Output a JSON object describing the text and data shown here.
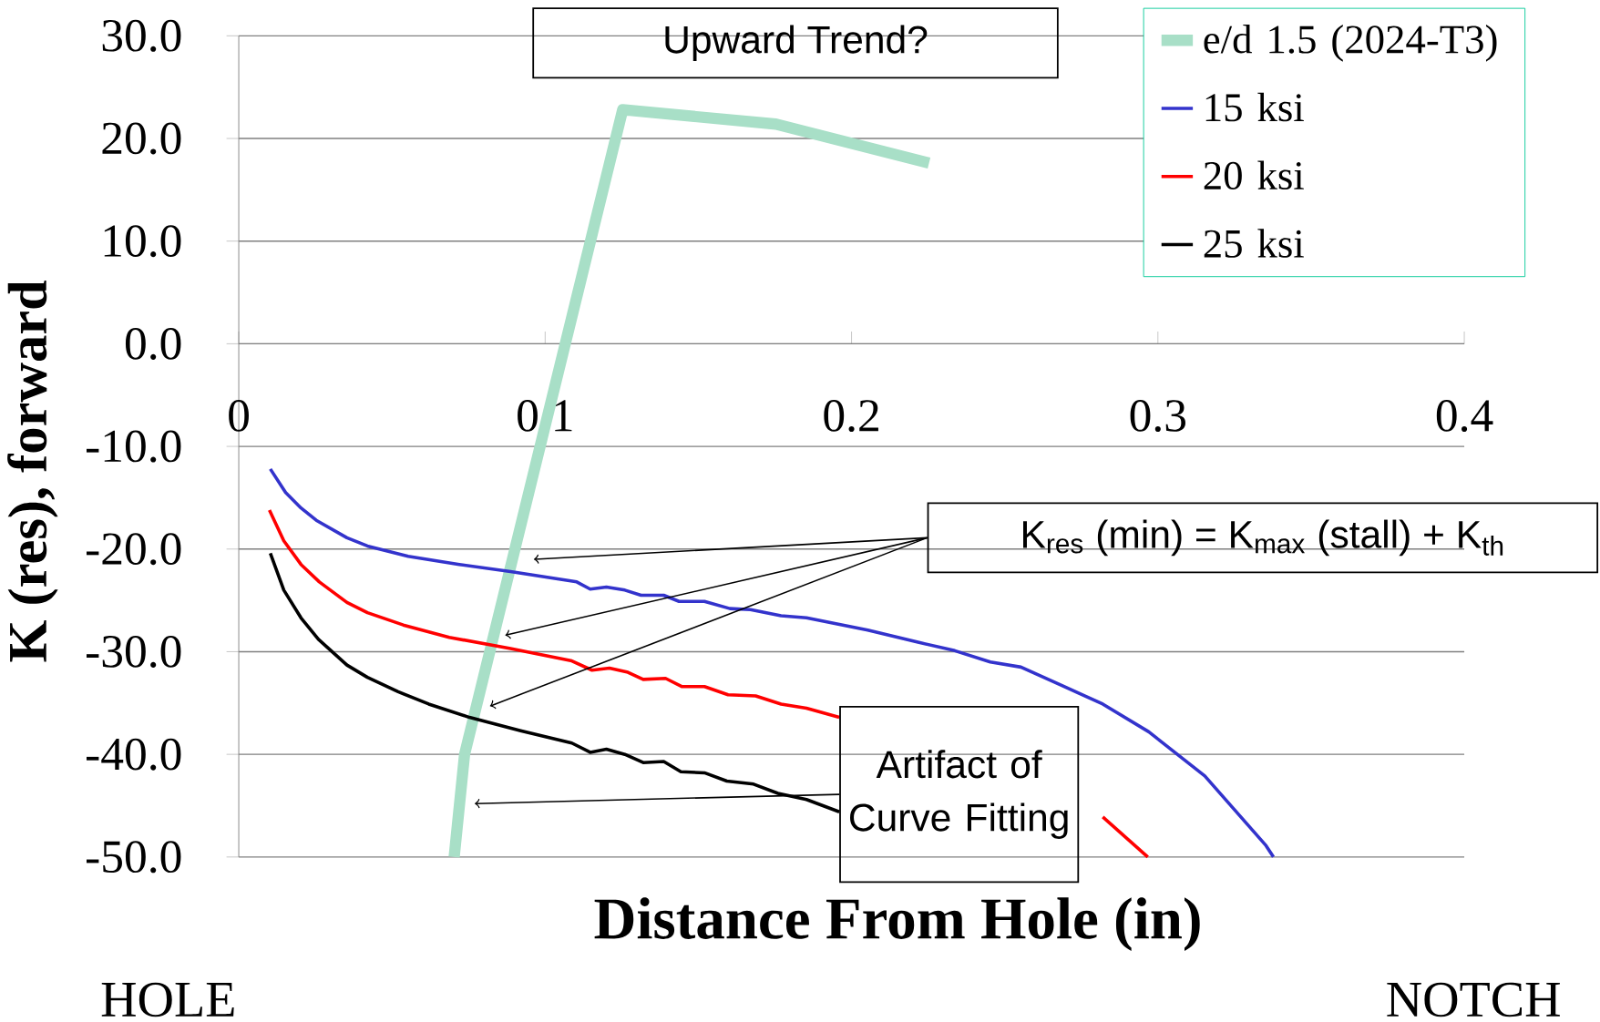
{
  "chart_data": {
    "type": "line",
    "xlabel": "Distance From Hole (in)",
    "ylabel": "K (res), forward",
    "xlim": [
      0,
      0.4
    ],
    "xticks": [
      0,
      0.1,
      0.2,
      0.3,
      0.4
    ],
    "ylim": [
      -50,
      30
    ],
    "yticks": [
      {
        "value": 30,
        "label": "30.0"
      },
      {
        "value": 20,
        "label": "20.0"
      },
      {
        "value": 10,
        "label": "10.0"
      },
      {
        "value": 0,
        "label": "0.0"
      },
      {
        "value": -10,
        "label": "-10.0"
      },
      {
        "value": -20,
        "label": "-20.0"
      },
      {
        "value": -30,
        "label": "-30.0"
      },
      {
        "value": -40,
        "label": "-40.0"
      },
      {
        "value": -50,
        "label": "-50.0"
      }
    ],
    "grid": "y",
    "legend": "top right",
    "marker": "none",
    "line_style": "solid",
    "series": [
      {
        "name": "e/d 1.5 (2024-T3)",
        "color": "#a8dfc7",
        "x": [
          0.0703,
          0.0737,
          0.1253,
          0.1753,
          0.2253
        ],
        "values": [
          -50,
          -40,
          22.8,
          21.4,
          17.6
        ]
      },
      {
        "name": "15 ksi",
        "color": "#3333cc",
        "x": [
          0.0103,
          0.0153,
          0.0203,
          0.0253,
          0.0353,
          0.042,
          0.0553,
          0.072,
          0.0887,
          0.1103,
          0.1147,
          0.12,
          0.126,
          0.1313,
          0.1387,
          0.1437,
          0.152,
          0.1603,
          0.167,
          0.177,
          0.1853,
          0.2053,
          0.222,
          0.2337,
          0.2453,
          0.2553,
          0.2687,
          0.282,
          0.297,
          0.3153,
          0.3353,
          0.3377
        ],
        "values": [
          -12.2,
          -14.5,
          -16.0,
          -17.2,
          -18.9,
          -19.7,
          -20.7,
          -21.5,
          -22.2,
          -23.2,
          -23.9,
          -23.7,
          -24.0,
          -24.5,
          -24.5,
          -25.1,
          -25.1,
          -25.8,
          -25.9,
          -26.5,
          -26.7,
          -27.9,
          -29.1,
          -29.9,
          -31.0,
          -31.5,
          -33.3,
          -35.1,
          -37.8,
          -42.1,
          -48.9,
          -50
        ]
      },
      {
        "name": "20 ksi",
        "color": "#ff0000",
        "x": [
          0.01,
          0.0147,
          0.0203,
          0.0263,
          0.0353,
          0.042,
          0.0537,
          0.0687,
          0.0887,
          0.1087,
          0.1153,
          0.121,
          0.127,
          0.132,
          0.1393,
          0.1447,
          0.152,
          0.1597,
          0.1687,
          0.177,
          0.1853,
          0.196,
          0.24,
          0.282,
          0.2967
        ],
        "values": [
          -16.2,
          -19.2,
          -21.5,
          -23.2,
          -25.2,
          -26.2,
          -27.4,
          -28.6,
          -29.7,
          -30.9,
          -31.8,
          -31.6,
          -32.0,
          -32.7,
          -32.6,
          -33.4,
          -33.4,
          -34.2,
          -34.3,
          -35.1,
          -35.5,
          -36.4,
          null,
          -46.1,
          -50
        ]
      },
      {
        "name": "25 ksi",
        "color": "#000000",
        "x": [
          0.0103,
          0.0147,
          0.0203,
          0.026,
          0.0353,
          0.042,
          0.052,
          0.062,
          0.0753,
          0.092,
          0.1087,
          0.1147,
          0.12,
          0.126,
          0.132,
          0.1387,
          0.1443,
          0.152,
          0.1593,
          0.168,
          0.176,
          0.1853,
          0.196
        ],
        "values": [
          -20.4,
          -24.0,
          -26.7,
          -28.8,
          -31.3,
          -32.5,
          -33.9,
          -35.1,
          -36.4,
          -37.7,
          -38.9,
          -39.8,
          -39.5,
          -40.0,
          -40.8,
          -40.7,
          -41.7,
          -41.8,
          -42.6,
          -42.9,
          -43.8,
          -44.4,
          -45.6
        ]
      }
    ],
    "annotations": [
      "Upward Trend?",
      "K$_{res}$ (min) = K$_{max}$ (stall) + K$_{th}$",
      "Artifact of Curve Fitting",
      "HOLE",
      "NOTCH"
    ]
  }
}
